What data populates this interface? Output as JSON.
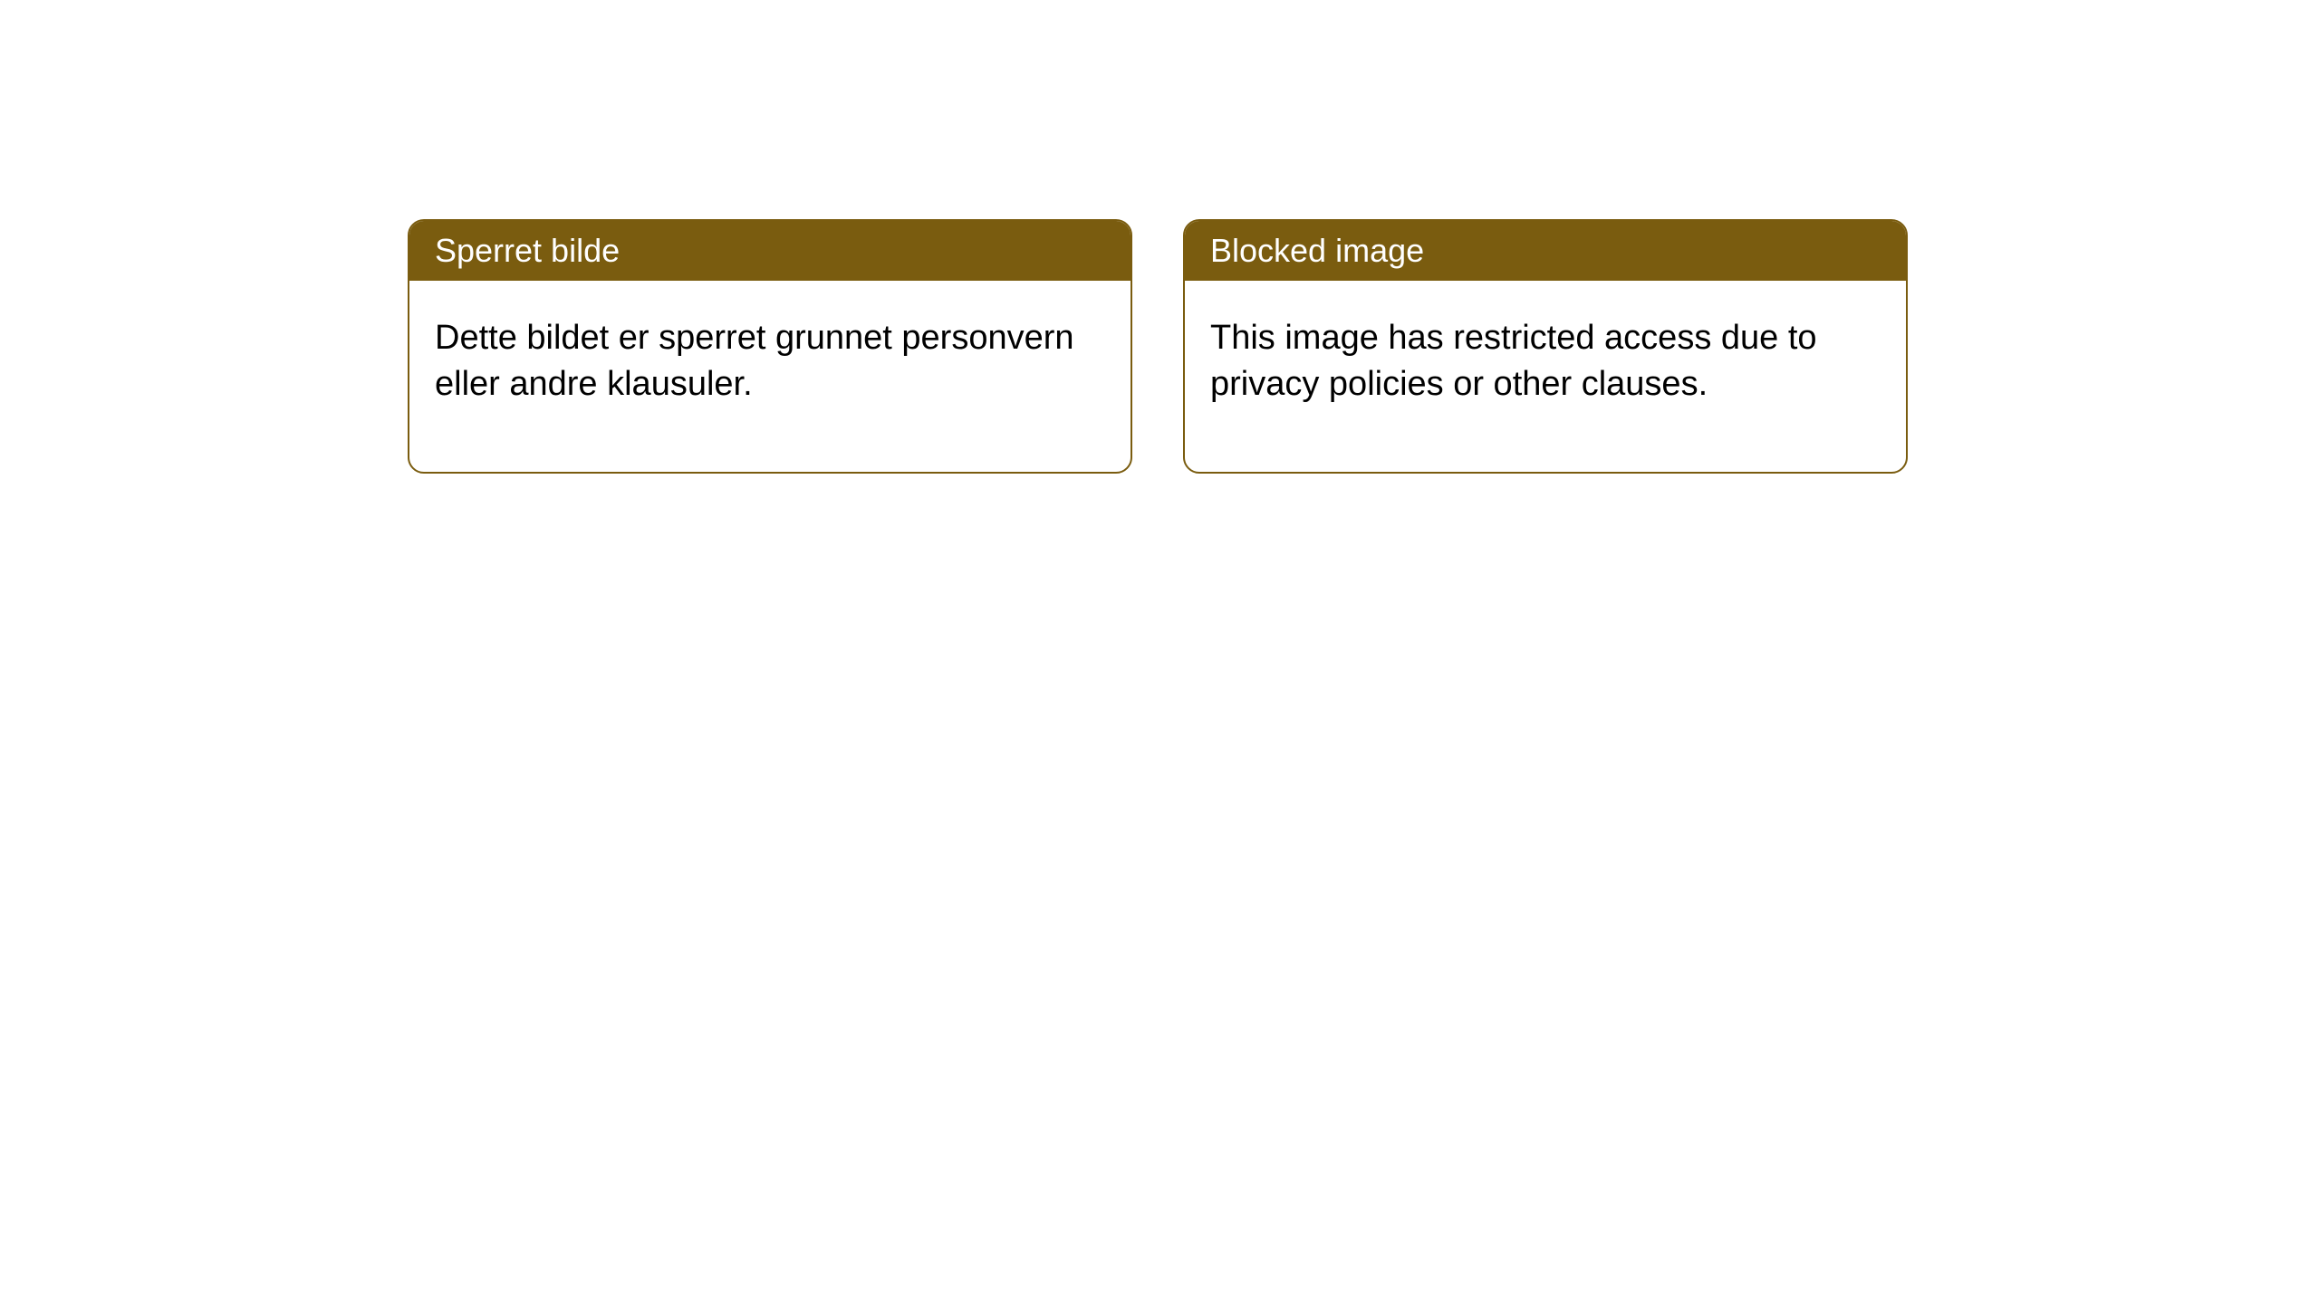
{
  "notices": [
    {
      "title": "Sperret bilde",
      "body": "Dette bildet er sperret grunnet personvern eller andre klausuler."
    },
    {
      "title": "Blocked image",
      "body": "This image has restricted access due to privacy policies or other clauses."
    }
  ],
  "style": {
    "header_bg": "#7a5c0f",
    "header_text_color": "#ffffff",
    "border_color": "#7a5c0f",
    "body_bg": "#ffffff",
    "body_text_color": "#000000",
    "border_radius": 18,
    "header_fontsize": 36,
    "body_fontsize": 38
  }
}
